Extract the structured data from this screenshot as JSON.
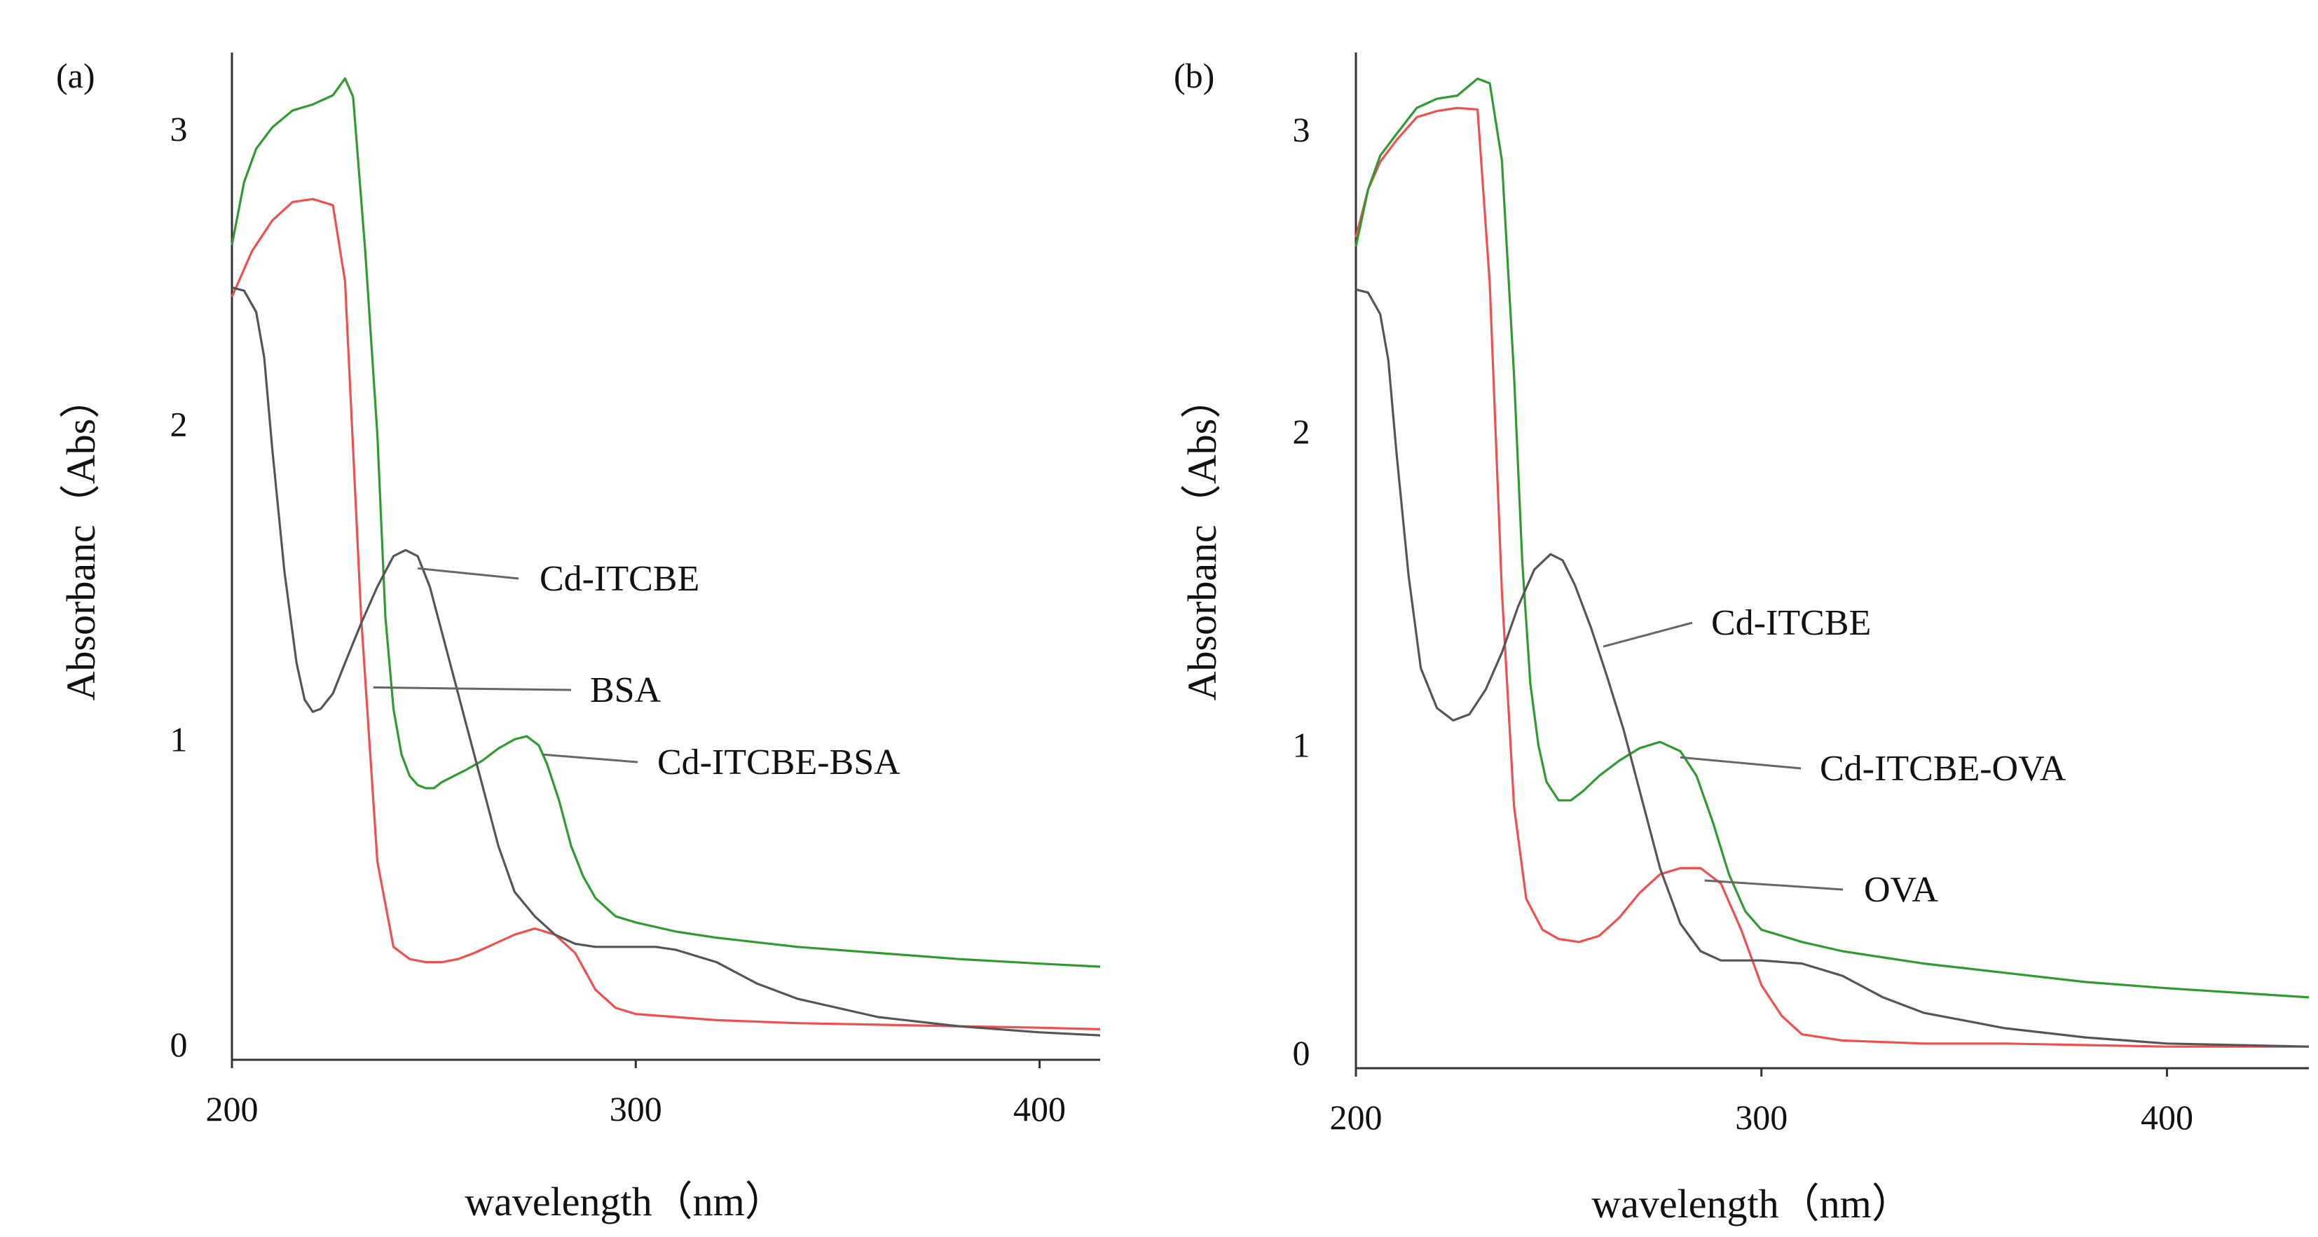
{
  "figure": {
    "description_panels": [
      "(a)",
      "(b)"
    ]
  },
  "chart_data": [
    {
      "type": "line",
      "panel_label": "(a)",
      "xlabel": "wavelength（nm）",
      "ylabel": "Absorbanc（Abs）",
      "xlim": [
        200,
        415
      ],
      "ylim": [
        -0.05,
        3.25
      ],
      "xticks": [
        200,
        300,
        400
      ],
      "xtick_labels": [
        "200",
        "300",
        "400"
      ],
      "yticks": [
        0,
        1,
        2,
        3
      ],
      "ytick_labels": [
        "0",
        "1",
        "2",
        "3"
      ],
      "colors": {
        "Cd-ITCBE": "#555555",
        "BSA": "#ef4f4f",
        "Cd-ITCBE-BSA": "#2f9a2f"
      },
      "series": [
        {
          "name": "BSA",
          "color": "#ef4f4f",
          "x": [
            200,
            205,
            210,
            215,
            220,
            225,
            228,
            232,
            236,
            240,
            244,
            248,
            252,
            256,
            260,
            265,
            270,
            275,
            280,
            285,
            290,
            295,
            300,
            310,
            320,
            340,
            360,
            380,
            400,
            415
          ],
          "y": [
            2.45,
            2.6,
            2.7,
            2.76,
            2.77,
            2.75,
            2.5,
            1.4,
            0.6,
            0.32,
            0.28,
            0.27,
            0.27,
            0.28,
            0.3,
            0.33,
            0.36,
            0.38,
            0.36,
            0.3,
            0.18,
            0.12,
            0.1,
            0.09,
            0.08,
            0.07,
            0.065,
            0.06,
            0.055,
            0.05
          ]
        },
        {
          "name": "Cd-ITCBE-BSA",
          "color": "#2f9a2f",
          "x": [
            200,
            203,
            206,
            210,
            215,
            220,
            225,
            228,
            230,
            233,
            236,
            238,
            240,
            242,
            244,
            246,
            248,
            250,
            252,
            255,
            258,
            262,
            266,
            270,
            273,
            276,
            278,
            281,
            284,
            287,
            290,
            295,
            300,
            310,
            320,
            340,
            360,
            380,
            400,
            415
          ],
          "y": [
            2.62,
            2.82,
            2.94,
            3.02,
            3.05,
            3.08,
            3.12,
            3.15,
            3.1,
            2.6,
            2.0,
            1.4,
            1.1,
            0.95,
            0.88,
            0.85,
            0.84,
            0.84,
            0.86,
            0.88,
            0.9,
            0.93,
            0.97,
            1.0,
            1.01,
            0.98,
            0.92,
            0.8,
            0.65,
            0.55,
            0.48,
            0.42,
            0.4,
            0.37,
            0.35,
            0.32,
            0.3,
            0.28,
            0.265,
            0.255
          ]
        },
        {
          "name": "Cd-ITCBE",
          "color": "#555555",
          "x": [
            200,
            203,
            206,
            208,
            210,
            213,
            216,
            218,
            220,
            222,
            225,
            228,
            232,
            236,
            240,
            243,
            246,
            249,
            252,
            255,
            258,
            262,
            266,
            270,
            275,
            280,
            285,
            290,
            295,
            300,
            305,
            310,
            320,
            330,
            340,
            360,
            380,
            400,
            415
          ],
          "y": [
            2.48,
            2.47,
            2.4,
            2.25,
            1.95,
            1.55,
            1.25,
            1.13,
            1.09,
            1.1,
            1.15,
            1.25,
            1.38,
            1.5,
            1.6,
            1.62,
            1.6,
            1.5,
            1.35,
            1.2,
            1.05,
            0.85,
            0.65,
            0.5,
            0.42,
            0.36,
            0.33,
            0.32,
            0.32,
            0.32,
            0.32,
            0.31,
            0.27,
            0.2,
            0.15,
            0.09,
            0.06,
            0.04,
            0.03
          ]
        }
      ],
      "annotations": [
        {
          "text": "Cd-ITCBE",
          "series": "Cd-ITCBE",
          "x": 246,
          "y": 1.56
        },
        {
          "text": "BSA",
          "series": "BSA",
          "x": 235,
          "y": 1.17
        },
        {
          "text": "Cd-ITCBE-BSA",
          "series": "Cd-ITCBE-BSA",
          "x": 277,
          "y": 0.95
        }
      ]
    },
    {
      "type": "line",
      "panel_label": "(b)",
      "xlabel": "wavelength（nm）",
      "ylabel": "Absorbanc（Abs）",
      "xlim": [
        200,
        435
      ],
      "ylim": [
        -0.05,
        3.25
      ],
      "xticks": [
        200,
        300,
        400
      ],
      "xtick_labels": [
        "200",
        "300",
        "400"
      ],
      "yticks": [
        0,
        1,
        2,
        3
      ],
      "ytick_labels": [
        "0",
        "1",
        "2",
        "3"
      ],
      "colors": {
        "Cd-ITCBE": "#555555",
        "OVA": "#ef4f4f",
        "Cd-ITCBE-OVA": "#2f9a2f"
      },
      "series": [
        {
          "name": "OVA",
          "color": "#ef4f4f",
          "x": [
            200,
            203,
            206,
            210,
            215,
            220,
            225,
            230,
            233,
            236,
            239,
            242,
            246,
            250,
            255,
            260,
            265,
            270,
            275,
            280,
            285,
            290,
            295,
            300,
            305,
            310,
            320,
            340,
            360,
            380,
            400,
            435
          ],
          "y": [
            2.65,
            2.8,
            2.9,
            2.98,
            3.03,
            3.06,
            3.08,
            3.05,
            2.5,
            1.5,
            0.8,
            0.5,
            0.4,
            0.37,
            0.36,
            0.38,
            0.44,
            0.52,
            0.58,
            0.6,
            0.6,
            0.55,
            0.4,
            0.22,
            0.12,
            0.06,
            0.04,
            0.03,
            0.03,
            0.025,
            0.02,
            0.02
          ]
        },
        {
          "name": "Cd-ITCBE-OVA",
          "color": "#2f9a2f",
          "x": [
            200,
            203,
            206,
            210,
            215,
            220,
            225,
            230,
            233,
            236,
            239,
            241,
            243,
            245,
            247,
            250,
            253,
            256,
            260,
            265,
            270,
            275,
            280,
            284,
            288,
            292,
            296,
            300,
            310,
            320,
            340,
            360,
            380,
            400,
            435
          ],
          "y": [
            2.62,
            2.8,
            2.92,
            3.0,
            3.06,
            3.1,
            3.12,
            3.15,
            3.15,
            2.9,
            2.2,
            1.6,
            1.2,
            1.0,
            0.88,
            0.82,
            0.82,
            0.85,
            0.9,
            0.95,
            0.99,
            1.01,
            0.98,
            0.9,
            0.75,
            0.58,
            0.46,
            0.4,
            0.36,
            0.33,
            0.29,
            0.26,
            0.23,
            0.21,
            0.18
          ]
        },
        {
          "name": "Cd-ITCBE",
          "color": "#555555",
          "x": [
            200,
            203,
            206,
            208,
            210,
            213,
            216,
            220,
            224,
            228,
            232,
            236,
            240,
            244,
            248,
            251,
            254,
            258,
            262,
            266,
            270,
            275,
            280,
            285,
            290,
            295,
            300,
            310,
            320,
            330,
            340,
            360,
            380,
            400,
            435
          ],
          "y": [
            2.48,
            2.47,
            2.4,
            2.25,
            1.95,
            1.55,
            1.25,
            1.12,
            1.08,
            1.1,
            1.18,
            1.3,
            1.45,
            1.57,
            1.62,
            1.6,
            1.52,
            1.38,
            1.22,
            1.05,
            0.85,
            0.6,
            0.42,
            0.33,
            0.3,
            0.3,
            0.3,
            0.29,
            0.25,
            0.18,
            0.13,
            0.08,
            0.05,
            0.03,
            0.02
          ]
        }
      ],
      "annotations": [
        {
          "text": "Cd-ITCBE",
          "series": "Cd-ITCBE",
          "x": 261,
          "y": 1.32
        },
        {
          "text": "Cd-ITCBE-OVA",
          "series": "Cd-ITCBE-OVA",
          "x": 280,
          "y": 0.96
        },
        {
          "text": "OVA",
          "series": "OVA",
          "x": 286,
          "y": 0.56
        }
      ]
    }
  ]
}
